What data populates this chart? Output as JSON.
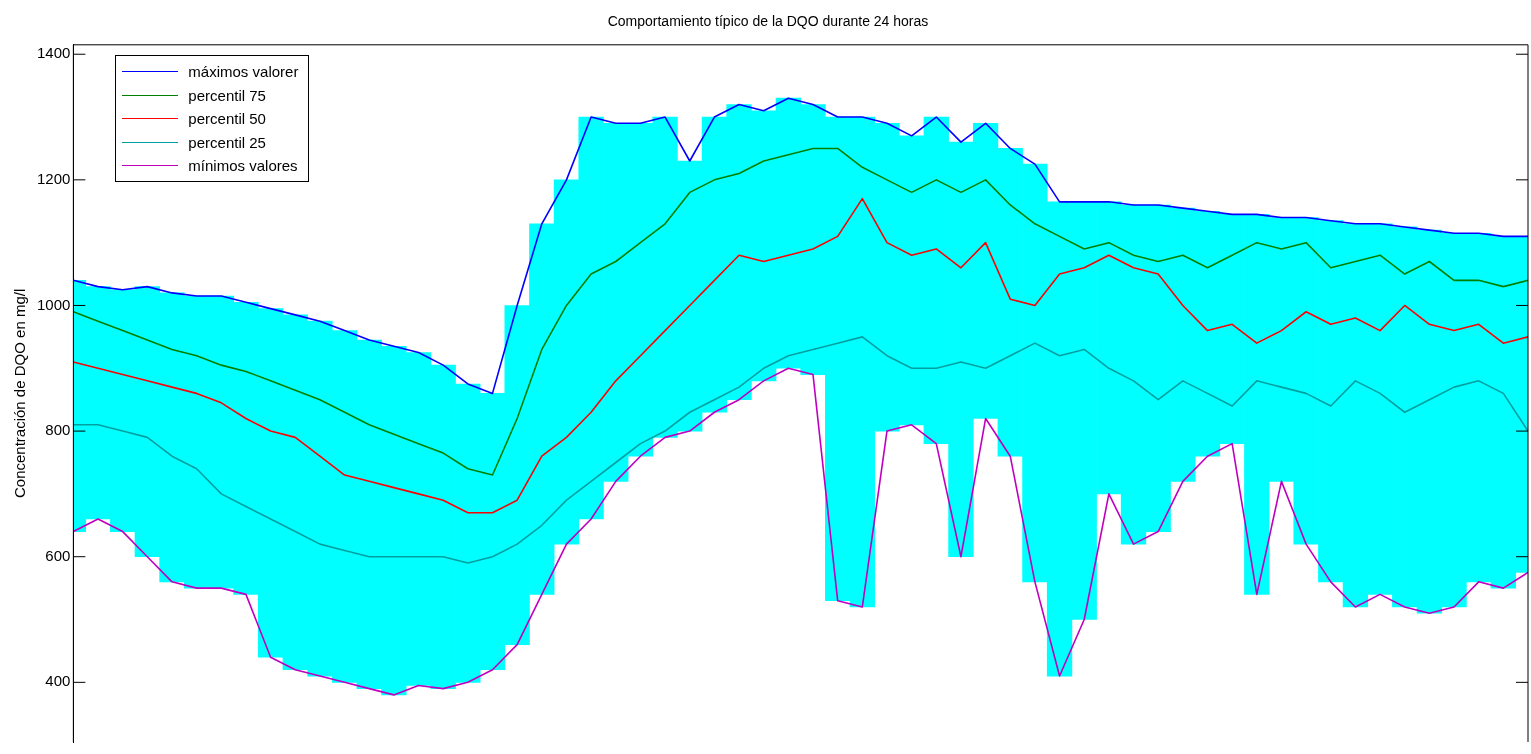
{
  "chart_data": {
    "type": "line",
    "title": "Comportamiento típico de la DQO durante 24 horas",
    "ylabel": "Concentración de DQO en mg/l",
    "categories": [
      null,
      null,
      null,
      null,
      null,
      null,
      null,
      null,
      null,
      null,
      null,
      null,
      null,
      null,
      null,
      null,
      null,
      null,
      null,
      null,
      null,
      null,
      null,
      null,
      null,
      null,
      null,
      null,
      null,
      null,
      null,
      null,
      null,
      null,
      null,
      null,
      null,
      null,
      null,
      null,
      null,
      null,
      null,
      null,
      null,
      null,
      null,
      null,
      null,
      null,
      null,
      null,
      null,
      null,
      null,
      null,
      null,
      null,
      null,
      null
    ],
    "ylim": [
      305,
      1415
    ],
    "yticks": [
      400,
      600,
      800,
      1000,
      1200,
      1400
    ],
    "grid": false,
    "legend": "top left",
    "series": [
      {
        "type": "bar",
        "color": "#00ffff",
        "values": [
          400,
          370,
          385,
          430,
          460,
          465,
          465,
          465,
          555,
          565,
          565,
          560,
          555,
          555,
          530,
          515,
          475,
          440,
          540,
          590,
          580,
          640,
          570,
          530,
          510,
          430,
          470,
          470,
          430,
          430,
          430,
          770,
          780,
          490,
          460,
          520,
          660,
          470,
          490,
          665,
          755,
          665,
          465,
          540,
          520,
          435,
          390,
          365,
          605,
          420,
          520,
          575,
          610,
          590,
          605,
          610,
          595,
          555,
          560,
          535
        ],
        "base": [
          640,
          660,
          640,
          600,
          560,
          550,
          550,
          540,
          440,
          420,
          410,
          400,
          390,
          380,
          395,
          390,
          400,
          420,
          460,
          540,
          620,
          660,
          720,
          760,
          790,
          800,
          830,
          850,
          880,
          900,
          890,
          530,
          520,
          800,
          810,
          780,
          600,
          820,
          760,
          560,
          410,
          500,
          700,
          620,
          640,
          720,
          760,
          780,
          540,
          720,
          620,
          560,
          520,
          540,
          520,
          510,
          520,
          560,
          550,
          575
        ]
      },
      {
        "name": "máximos valorer",
        "color": "#0000ff",
        "values": [
          1040,
          1030,
          1025,
          1030,
          1020,
          1015,
          1015,
          1005,
          995,
          985,
          975,
          960,
          945,
          935,
          925,
          905,
          875,
          860,
          1000,
          1130,
          1200,
          1300,
          1290,
          1290,
          1300,
          1230,
          1300,
          1320,
          1310,
          1330,
          1320,
          1300,
          1300,
          1290,
          1270,
          1300,
          1260,
          1290,
          1250,
          1225,
          1165,
          1165,
          1165,
          1160,
          1160,
          1155,
          1150,
          1145,
          1145,
          1140,
          1140,
          1135,
          1130,
          1130,
          1125,
          1120,
          1115,
          1115,
          1110,
          1110
        ]
      },
      {
        "name": "percentil 75",
        "color": "#007f00",
        "values": [
          990,
          975,
          960,
          945,
          930,
          920,
          905,
          895,
          880,
          865,
          850,
          830,
          810,
          795,
          780,
          765,
          740,
          730,
          820,
          930,
          1000,
          1050,
          1070,
          1100,
          1130,
          1180,
          1200,
          1210,
          1230,
          1240,
          1250,
          1250,
          1220,
          1200,
          1180,
          1200,
          1180,
          1200,
          1160,
          1130,
          1110,
          1090,
          1100,
          1080,
          1070,
          1080,
          1060,
          1080,
          1100,
          1090,
          1100,
          1060,
          1070,
          1080,
          1050,
          1070,
          1040,
          1040,
          1030,
          1040
        ]
      },
      {
        "name": "percentil 50",
        "color": "#ff0000",
        "values": [
          910,
          900,
          890,
          880,
          870,
          860,
          845,
          820,
          800,
          790,
          760,
          730,
          720,
          710,
          700,
          690,
          670,
          670,
          690,
          760,
          790,
          830,
          880,
          920,
          960,
          1000,
          1040,
          1080,
          1070,
          1080,
          1090,
          1110,
          1170,
          1100,
          1080,
          1090,
          1060,
          1100,
          1010,
          1000,
          1050,
          1060,
          1080,
          1060,
          1050,
          1000,
          960,
          970,
          940,
          960,
          990,
          970,
          980,
          960,
          1000,
          970,
          960,
          970,
          940,
          950
        ]
      },
      {
        "name": "percentil 25",
        "color": "#00a0a0",
        "values": [
          810,
          810,
          800,
          790,
          760,
          740,
          700,
          680,
          660,
          640,
          620,
          610,
          600,
          600,
          600,
          600,
          590,
          600,
          620,
          650,
          690,
          720,
          750,
          780,
          800,
          830,
          850,
          870,
          900,
          920,
          930,
          940,
          950,
          920,
          900,
          900,
          910,
          900,
          920,
          940,
          920,
          930,
          900,
          880,
          850,
          880,
          860,
          840,
          880,
          870,
          860,
          840,
          880,
          860,
          830,
          850,
          870,
          880,
          860,
          800
        ]
      },
      {
        "name": "mínimos valores",
        "color": "#bf00bf",
        "values": [
          640,
          660,
          640,
          600,
          560,
          550,
          550,
          540,
          440,
          420,
          410,
          400,
          390,
          380,
          395,
          390,
          400,
          420,
          460,
          540,
          620,
          660,
          720,
          760,
          790,
          800,
          830,
          850,
          880,
          900,
          890,
          530,
          520,
          800,
          810,
          780,
          600,
          820,
          760,
          560,
          410,
          500,
          700,
          620,
          640,
          720,
          760,
          780,
          540,
          720,
          620,
          560,
          520,
          540,
          520,
          510,
          520,
          560,
          550,
          575
        ]
      }
    ]
  }
}
